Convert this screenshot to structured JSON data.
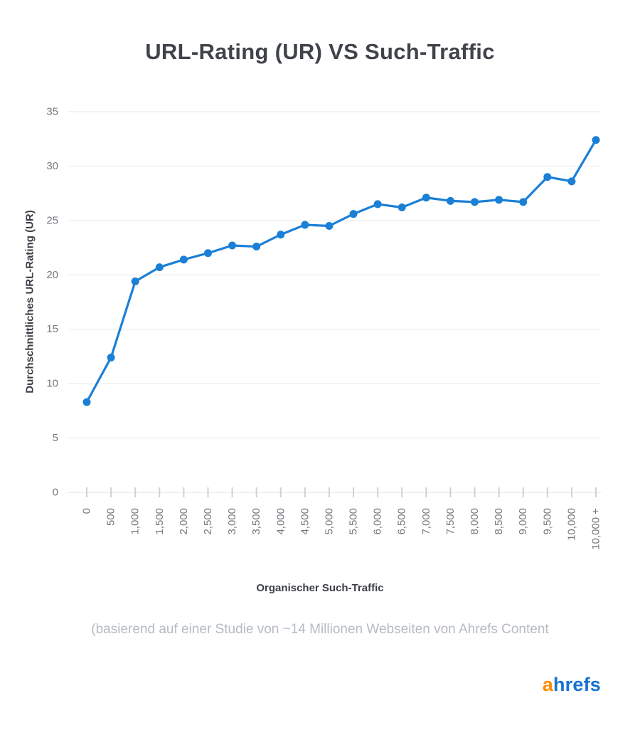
{
  "title": "URL-Rating (UR) VS Such-Traffic",
  "subtitle": "(basierend auf einer Studie von ~14 Millionen Webseiten von Ahrefs Content",
  "logo": {
    "part1": "a",
    "part2": "hrefs"
  },
  "chart_data": {
    "type": "line",
    "title": "URL-Rating (UR) VS Such-Traffic",
    "xlabel": "Organischer Such-Traffic",
    "ylabel": "Durchschnittliches URL-Rating (UR)",
    "categories": [
      "0",
      "500",
      "1,000",
      "1,500",
      "2,000",
      "2,500",
      "3,000",
      "3,500",
      "4,000",
      "4,500",
      "5,000",
      "5,500",
      "6,000",
      "6,500",
      "7,000",
      "7,500",
      "8,000",
      "8,500",
      "9,000",
      "9,500",
      "10,000",
      "10,000 +"
    ],
    "values": [
      8.3,
      12.4,
      19.4,
      20.7,
      21.4,
      22.0,
      22.7,
      22.6,
      23.7,
      24.6,
      24.5,
      25.6,
      26.5,
      26.2,
      27.1,
      26.8,
      26.7,
      26.9,
      26.7,
      29.0,
      28.6,
      32.4
    ],
    "ylim": [
      0,
      35
    ],
    "yticks": [
      0,
      5,
      10,
      15,
      20,
      25,
      30,
      35
    ],
    "grid": true,
    "legend": "none",
    "line_color": "#1b7fd6",
    "point_color": "#1b7fd6",
    "grid_color": "#e9eaec",
    "tick_color": "#cfd1d4",
    "tick_label_color": "#74777e"
  }
}
